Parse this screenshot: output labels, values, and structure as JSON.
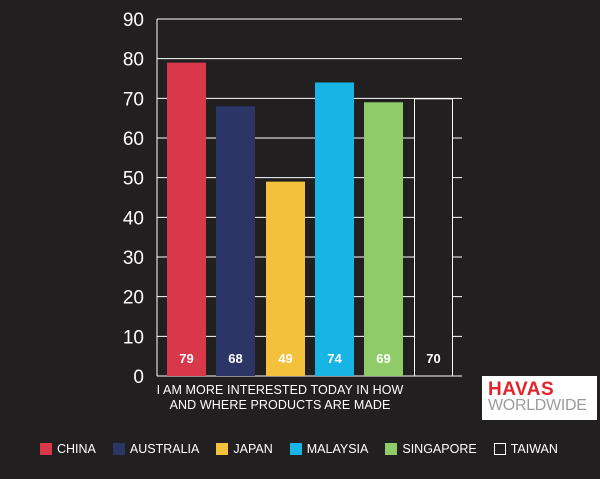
{
  "chart_data": {
    "type": "bar",
    "categories": [
      "CHINA",
      "AUSTRALIA",
      "JAPAN",
      "MALAYSIA",
      "SINGAPORE",
      "TAIWAN"
    ],
    "values": [
      79,
      68,
      49,
      74,
      69,
      70
    ],
    "data_labels": [
      "79",
      "68",
      "49",
      "74",
      "69",
      "70"
    ],
    "colors": [
      "#d9374a",
      "#2b3566",
      "#f4c13c",
      "#16b5e6",
      "#8fcc69",
      "none"
    ],
    "label_colors": [
      "#ffffff",
      "#ffffff",
      "#ffffff",
      "#ffffff",
      "#ffffff",
      "#ffffff"
    ],
    "ylim": [
      0,
      90
    ],
    "yticks": [
      "0",
      "10",
      "20",
      "30",
      "40",
      "50",
      "60",
      "70",
      "80",
      "90"
    ],
    "grid": true,
    "legend_position": "bottom",
    "xlabel_lines": [
      "I AM MORE INTERESTED TODAY IN HOW",
      "AND WHERE PRODUCTS ARE MADE"
    ]
  },
  "logo": {
    "line1": "HAVAS",
    "line2": "WORLDWIDE"
  }
}
